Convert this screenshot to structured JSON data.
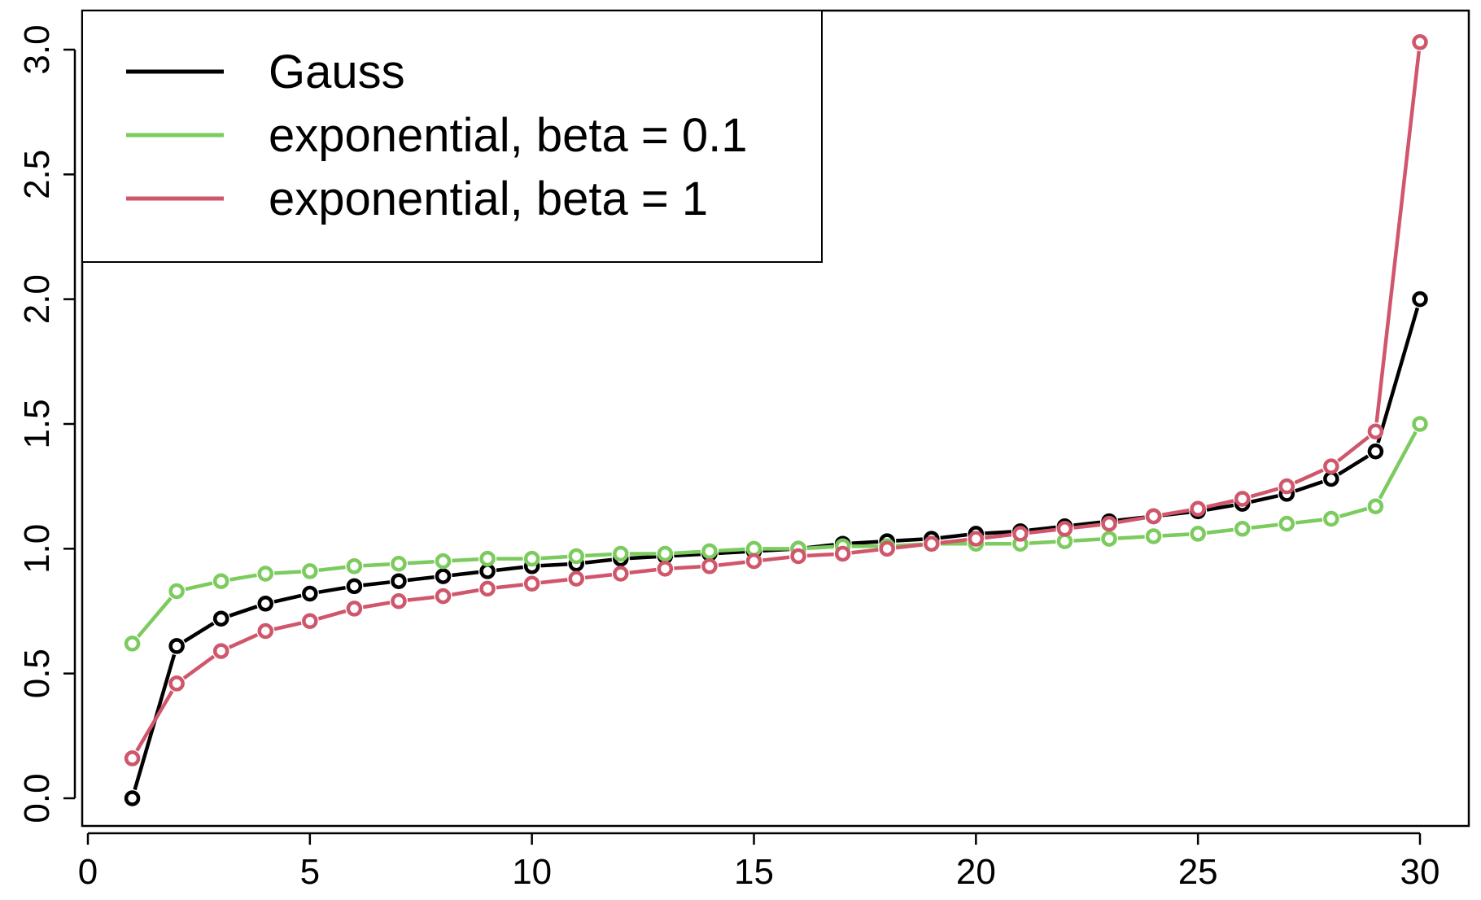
{
  "chart_data": {
    "type": "line",
    "title": "",
    "xlabel": "",
    "ylabel": "",
    "xlim": [
      0,
      30
    ],
    "ylim": [
      0,
      3.0
    ],
    "x_ticks": [
      0,
      5,
      10,
      15,
      20,
      25,
      30
    ],
    "y_ticks": [
      0.0,
      0.5,
      1.0,
      1.5,
      2.0,
      2.5,
      3.0
    ],
    "x_tick_labels": [
      "0",
      "5",
      "10",
      "15",
      "20",
      "25",
      "30"
    ],
    "y_tick_labels": [
      "0.0",
      "0.5",
      "1.0",
      "1.5",
      "2.0",
      "2.5",
      "3.0"
    ],
    "grid": false,
    "legend_position": "top-left",
    "x": [
      1,
      2,
      3,
      4,
      5,
      6,
      7,
      8,
      9,
      10,
      11,
      12,
      13,
      14,
      15,
      16,
      17,
      18,
      19,
      20,
      21,
      22,
      23,
      24,
      25,
      26,
      27,
      28,
      29,
      30
    ],
    "series": [
      {
        "name": "Gauss",
        "color": "#000000",
        "values": [
          0.0,
          0.61,
          0.72,
          0.78,
          0.82,
          0.85,
          0.87,
          0.89,
          0.91,
          0.93,
          0.94,
          0.96,
          0.97,
          0.98,
          0.99,
          1.0,
          1.02,
          1.03,
          1.04,
          1.06,
          1.07,
          1.09,
          1.11,
          1.13,
          1.15,
          1.18,
          1.22,
          1.28,
          1.39,
          2.0
        ]
      },
      {
        "name": "exponential, beta = 0.1",
        "color": "#7ccb5e",
        "values": [
          0.62,
          0.83,
          0.87,
          0.9,
          0.91,
          0.93,
          0.94,
          0.95,
          0.96,
          0.96,
          0.97,
          0.98,
          0.98,
          0.99,
          1.0,
          1.0,
          1.01,
          1.01,
          1.02,
          1.02,
          1.02,
          1.03,
          1.04,
          1.05,
          1.06,
          1.08,
          1.1,
          1.12,
          1.17,
          1.5
        ]
      },
      {
        "name": "exponential, beta = 1",
        "color": "#d0566b",
        "values": [
          0.16,
          0.46,
          0.59,
          0.67,
          0.71,
          0.76,
          0.79,
          0.81,
          0.84,
          0.86,
          0.88,
          0.9,
          0.92,
          0.93,
          0.95,
          0.97,
          0.98,
          1.0,
          1.02,
          1.04,
          1.06,
          1.08,
          1.1,
          1.13,
          1.16,
          1.2,
          1.25,
          1.33,
          1.47,
          3.03
        ]
      }
    ]
  }
}
